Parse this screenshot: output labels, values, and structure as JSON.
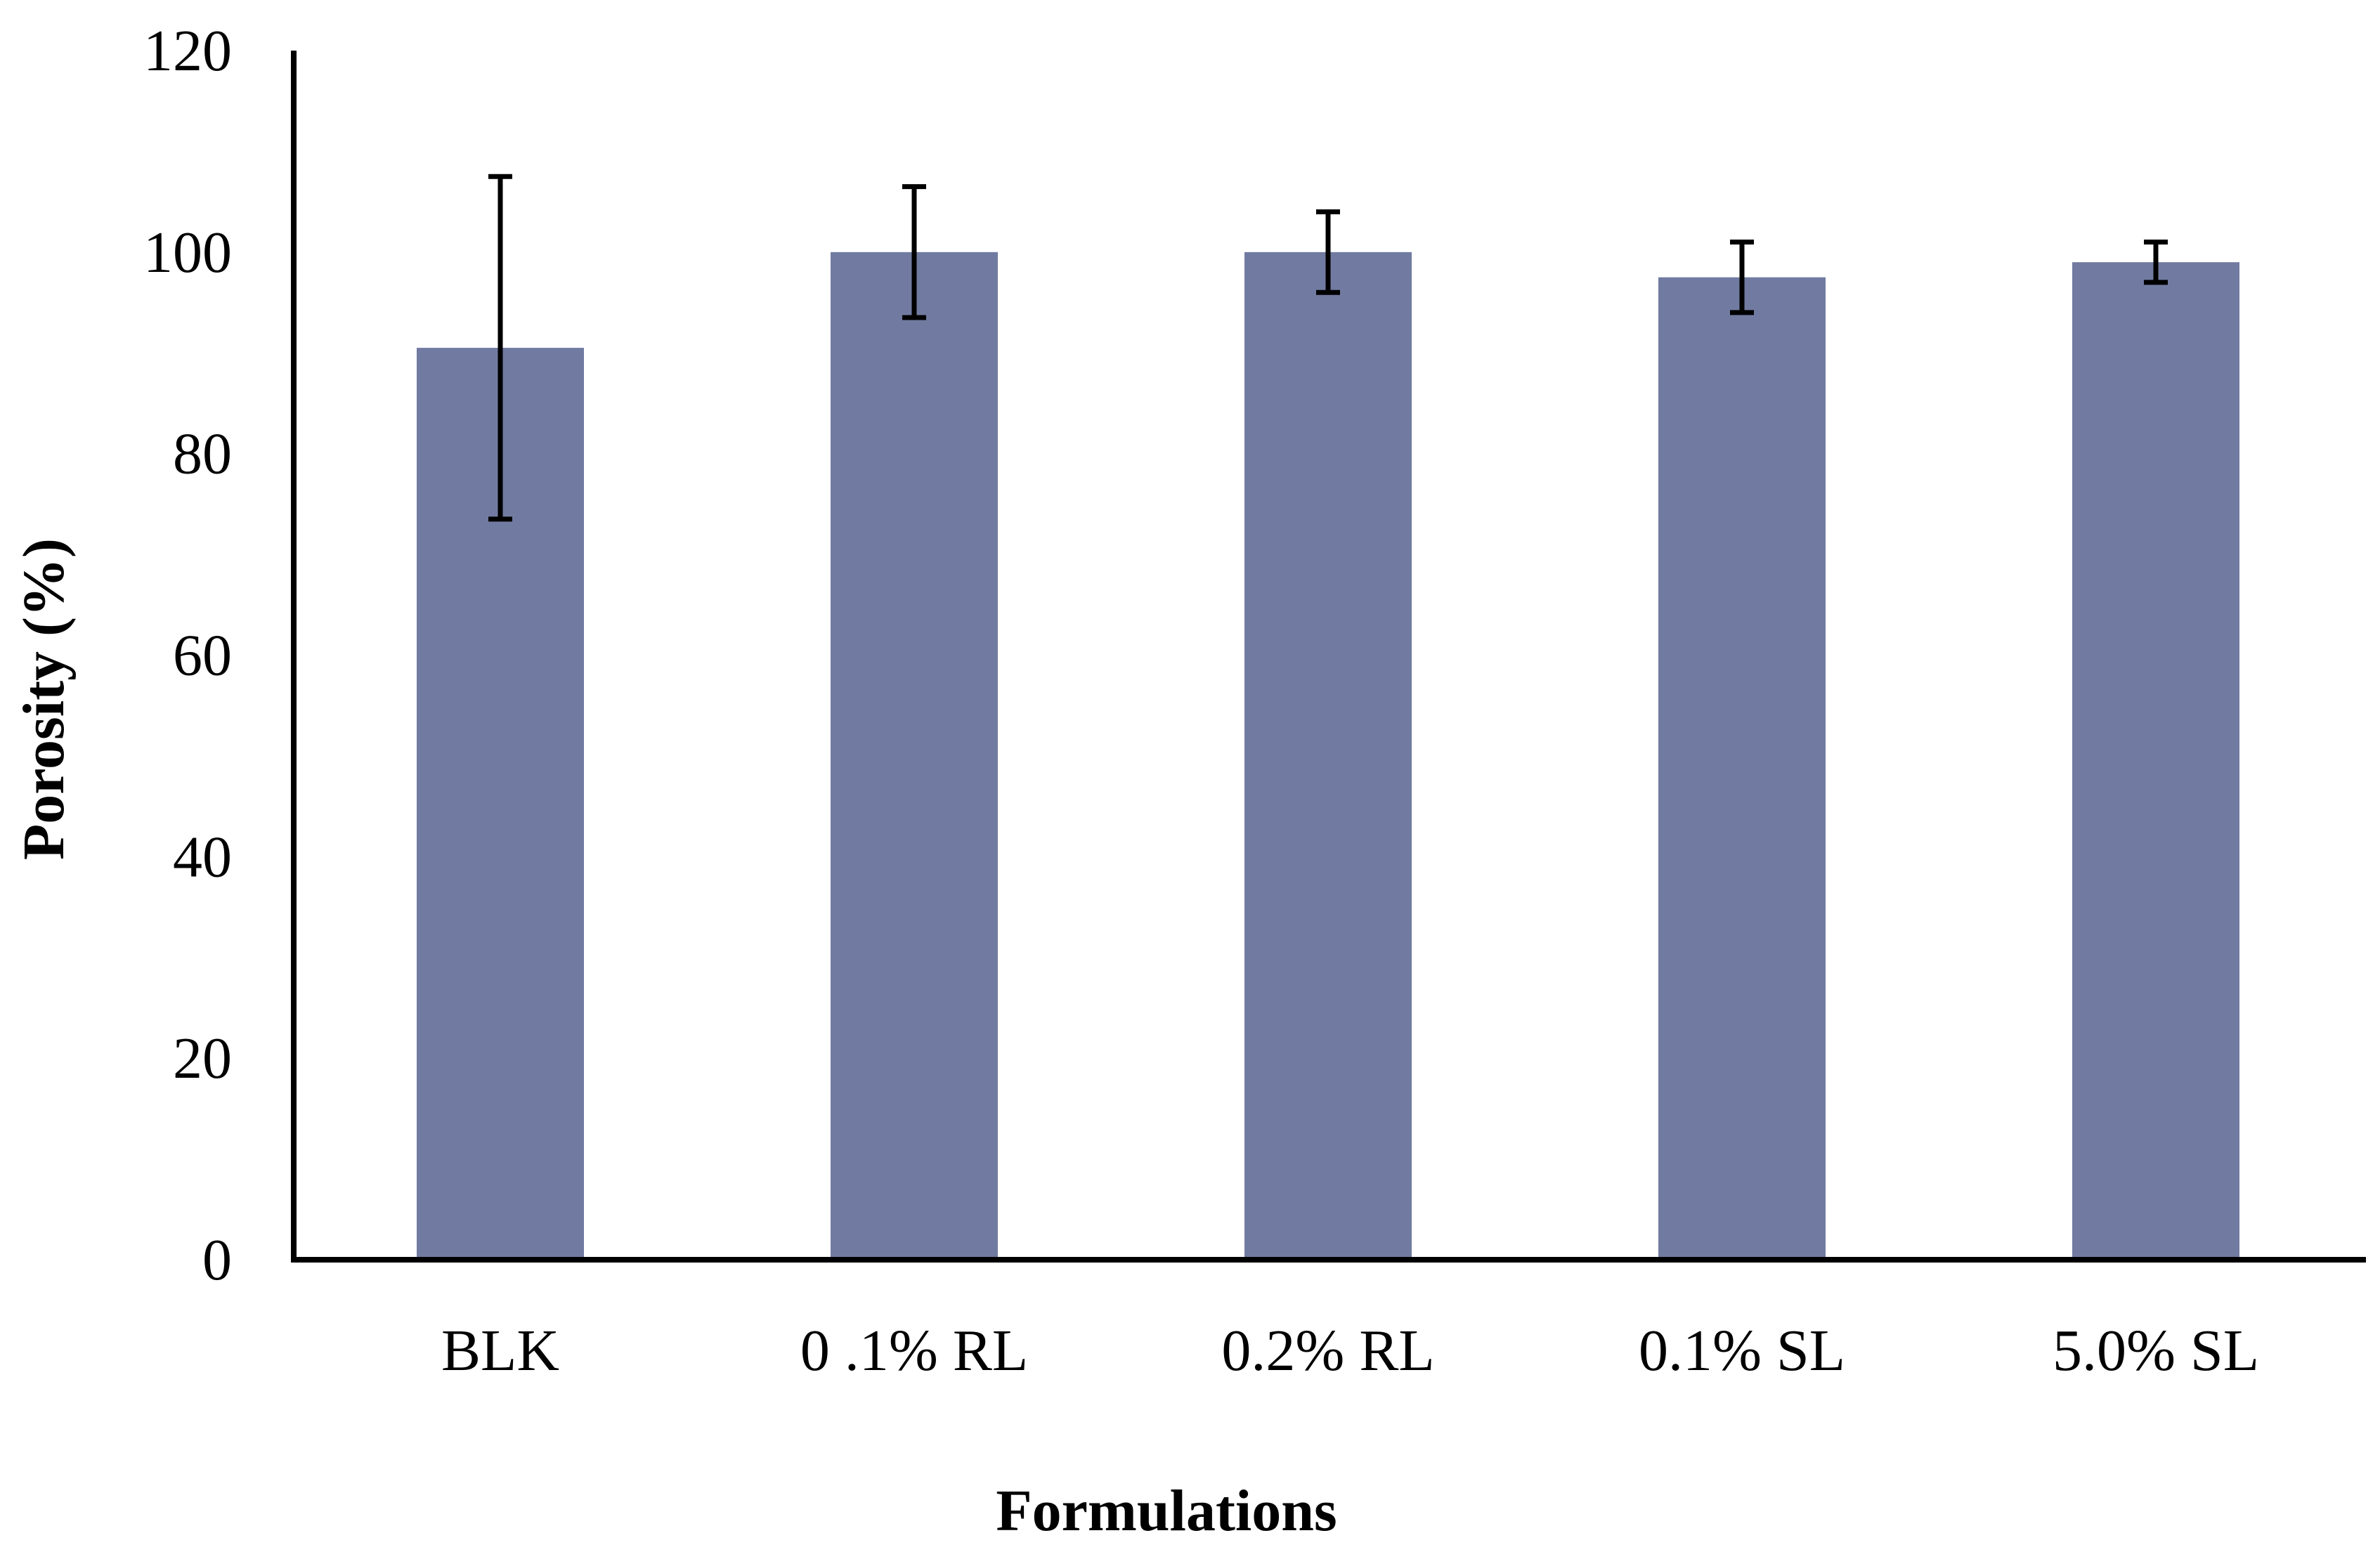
{
  "chart_data": {
    "type": "bar",
    "title": "",
    "xlabel": "Formulations",
    "ylabel": "Porosity (%)",
    "categories": [
      "BLK",
      "0 .1% RL",
      "0.2% RL",
      "0.1% SL",
      "5.0% SL"
    ],
    "series": [
      {
        "name": "Porosity",
        "values": [
          90.5,
          100,
          100,
          97.5,
          99
        ],
        "error": [
          17,
          6.5,
          4,
          3.5,
          2
        ]
      }
    ],
    "ylim": [
      0,
      120
    ],
    "yticks": [
      "0",
      "20",
      "40",
      "60",
      "80",
      "100",
      "120"
    ],
    "grid": false,
    "legend": "none",
    "colors": {
      "bar": "#717ba1",
      "axis": "#000000",
      "error_bar": "#000000"
    }
  }
}
